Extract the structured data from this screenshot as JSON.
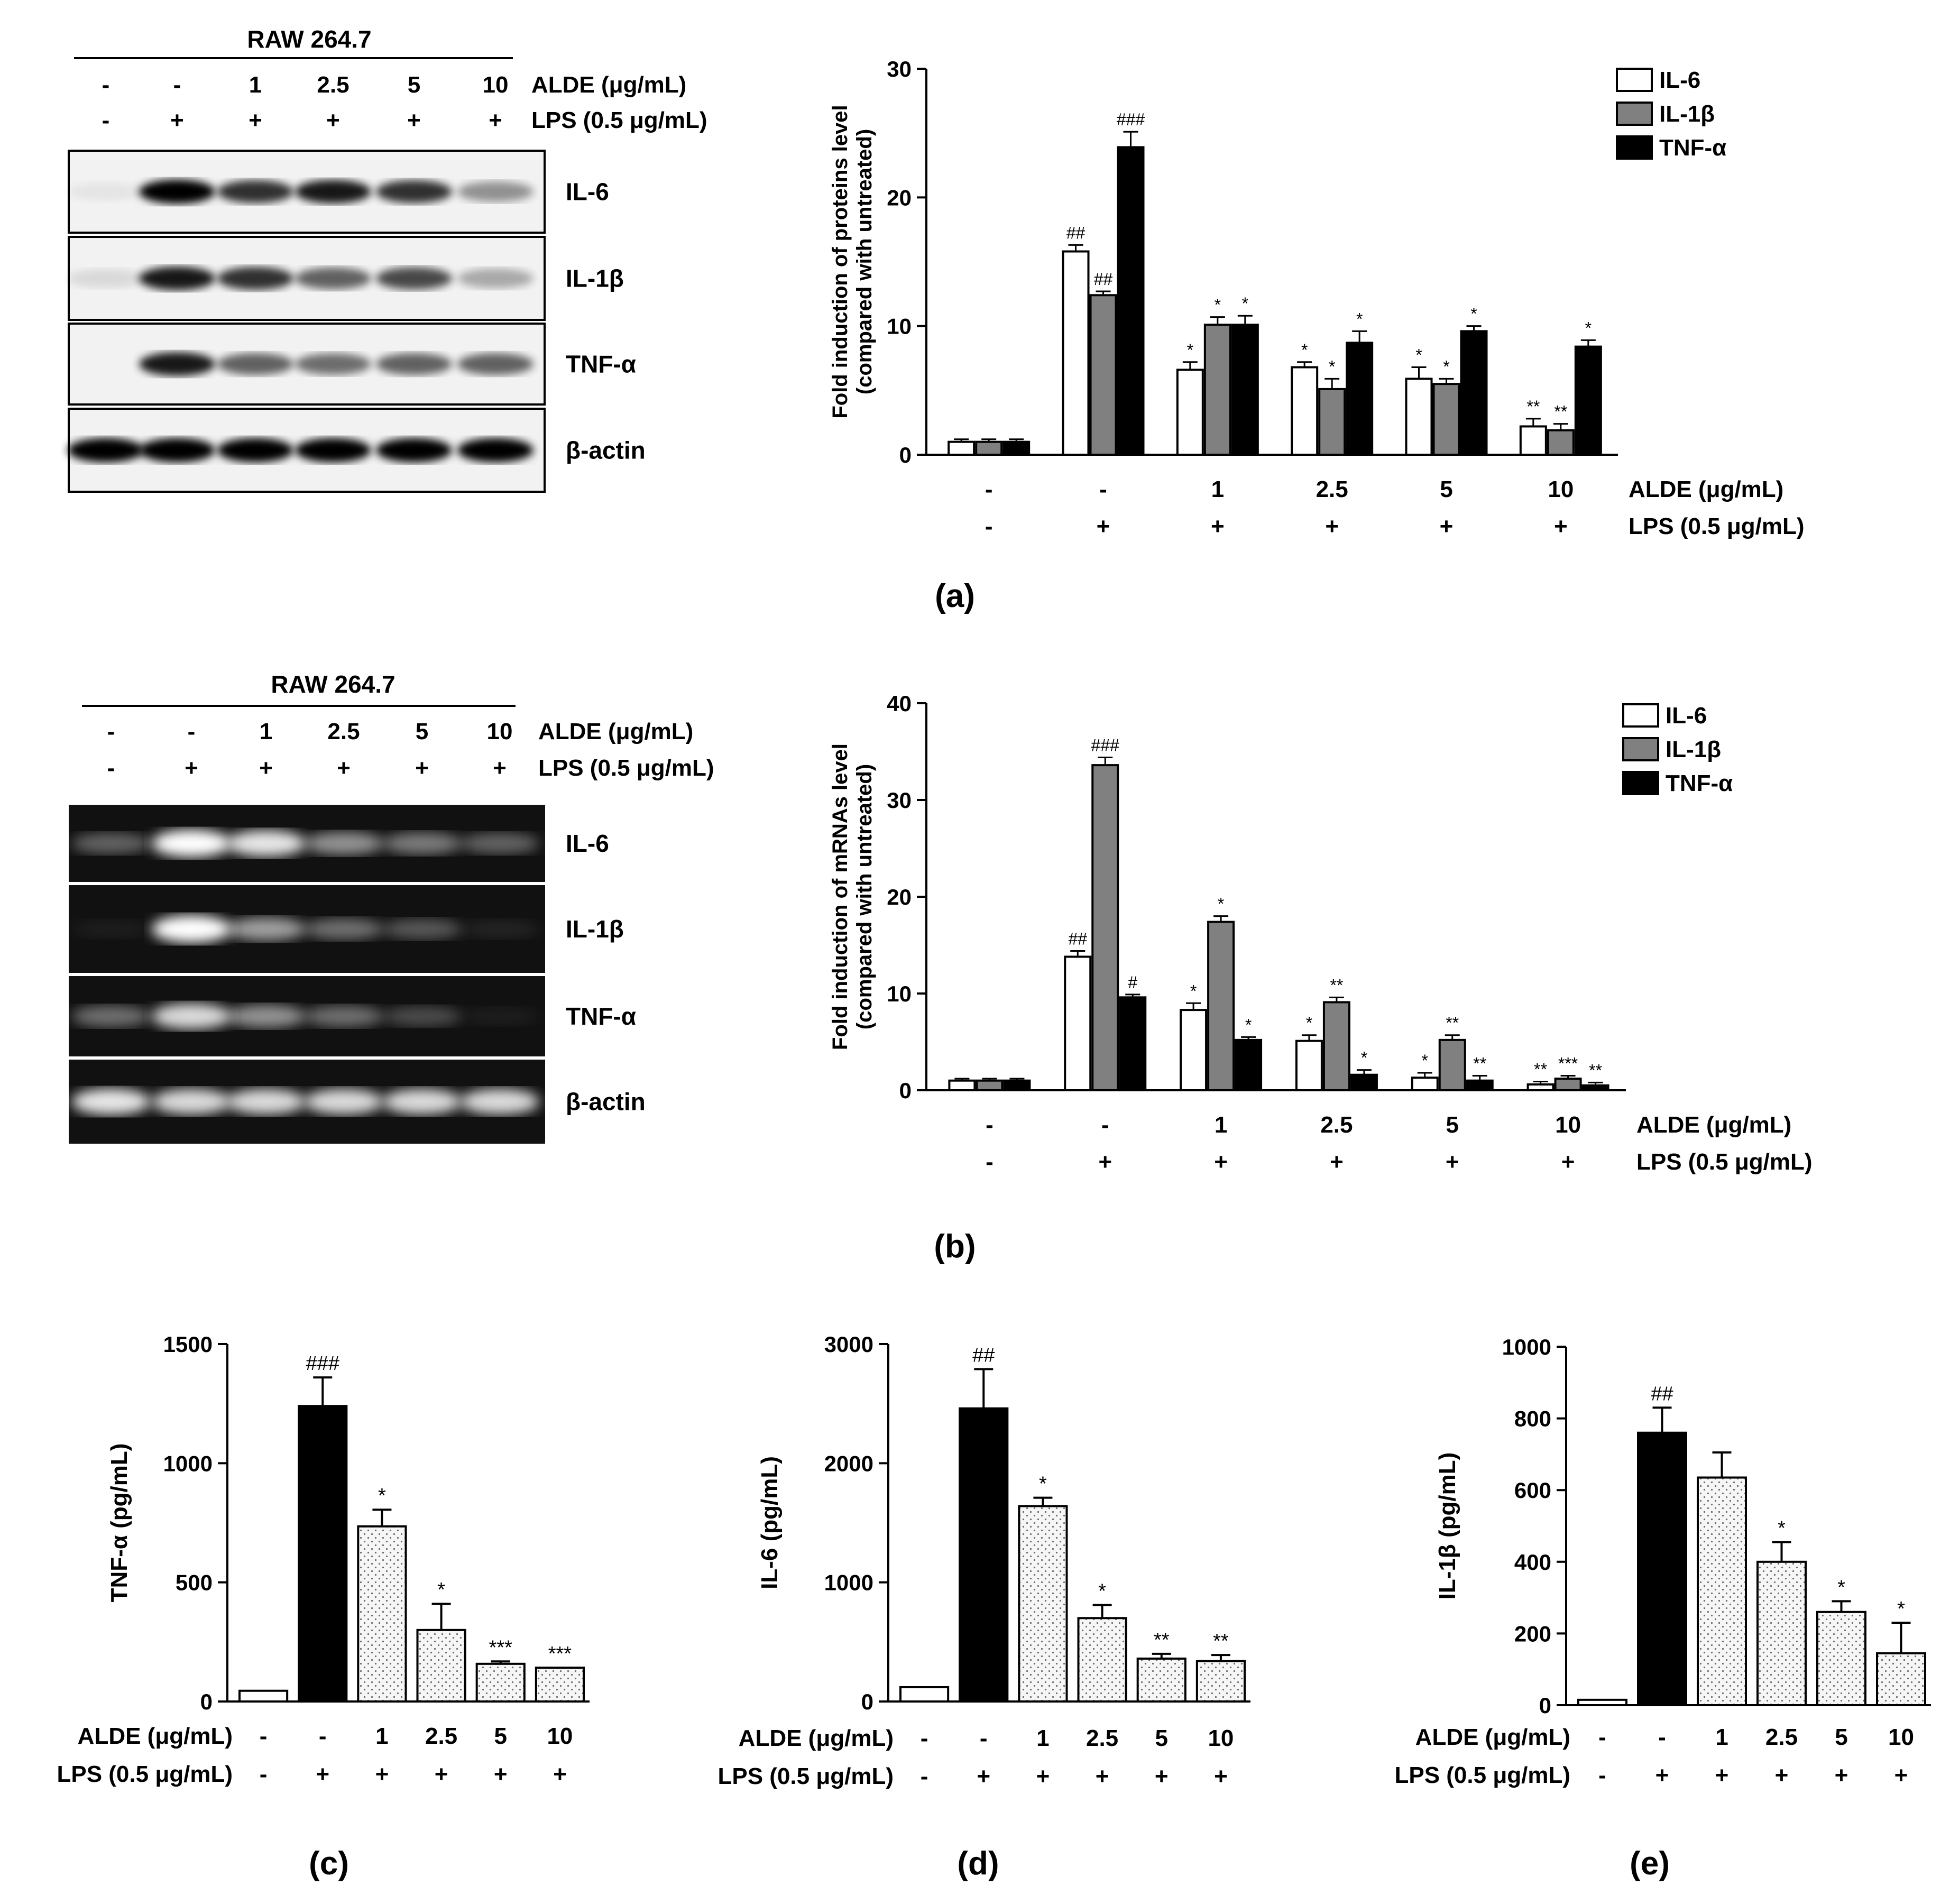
{
  "panel_labels": [
    "(a)",
    "(b)",
    "(c)",
    "(d)",
    "(e)"
  ],
  "treatment_labels": {
    "cell_line": "RAW 264.7",
    "aldes": [
      "-",
      "-",
      "1",
      "2.5",
      "5",
      "10"
    ],
    "lps": [
      "-",
      "+",
      "+",
      "+",
      "+",
      "+"
    ],
    "alde_label": "ALDE (μg/mL)",
    "lps_label": "LPS (0.5 μg/mL)"
  },
  "blot_a": {
    "band_labels": [
      "IL-6",
      "IL-1β",
      "TNF-α",
      "β-actin"
    ],
    "band_intensity": [
      [
        0.05,
        1.0,
        0.8,
        0.9,
        0.8,
        0.4
      ],
      [
        0.1,
        0.9,
        0.8,
        0.6,
        0.7,
        0.3
      ],
      [
        0.0,
        0.9,
        0.6,
        0.55,
        0.6,
        0.6
      ],
      [
        1.0,
        1.0,
        1.0,
        1.0,
        1.0,
        1.0
      ]
    ]
  },
  "gel_b": {
    "band_labels": [
      "IL-6",
      "IL-1β",
      "TNF-α",
      "β-actin"
    ],
    "band_intensity": [
      [
        0.35,
        1.0,
        0.9,
        0.55,
        0.45,
        0.35
      ],
      [
        0.05,
        1.0,
        0.6,
        0.4,
        0.3,
        0.08
      ],
      [
        0.4,
        0.85,
        0.55,
        0.4,
        0.25,
        0.05
      ],
      [
        0.9,
        0.85,
        0.85,
        0.85,
        0.85,
        0.85
      ]
    ]
  },
  "colors": {
    "il6": "#ffffff",
    "il1b": "#808080",
    "tnfa": "#000000",
    "dotted": "#f4f4f4"
  },
  "chart_data": [
    {
      "id": "a",
      "type": "bar",
      "ylabel": "Fold induction of proteins level",
      "ylabel2": "(compared with untreated)",
      "ylim": [
        0,
        30
      ],
      "yticks": [
        0,
        10,
        20,
        30
      ],
      "legend_position": "top-right",
      "categories": [
        "-",
        "-",
        "1",
        "2.5",
        "5",
        "10"
      ],
      "categories2": [
        "-",
        "+",
        "+",
        "+",
        "+",
        "+"
      ],
      "row_labels": [
        "ALDE (μg/mL)",
        "LPS (0.5 μg/mL)"
      ],
      "series": [
        {
          "name": "IL-6",
          "color": "#ffffff",
          "values": [
            1.0,
            15.8,
            6.6,
            6.8,
            5.9,
            2.2
          ],
          "errors": [
            0.2,
            0.5,
            0.6,
            0.4,
            0.9,
            0.6
          ],
          "annotations": [
            "",
            "##",
            "*",
            "*",
            "*",
            "**"
          ]
        },
        {
          "name": "IL-1β",
          "color": "#808080",
          "values": [
            1.0,
            12.4,
            10.1,
            5.1,
            5.5,
            1.9
          ],
          "errors": [
            0.2,
            0.3,
            0.6,
            0.8,
            0.4,
            0.5
          ],
          "annotations": [
            "",
            "##",
            "*",
            "*",
            "*",
            "**"
          ]
        },
        {
          "name": "TNF-α",
          "color": "#000000",
          "values": [
            1.0,
            23.9,
            10.1,
            8.7,
            9.6,
            8.4
          ],
          "errors": [
            0.2,
            1.2,
            0.7,
            0.9,
            0.4,
            0.5
          ],
          "annotations": [
            "",
            "###",
            "*",
            "*",
            "*",
            "*"
          ]
        }
      ]
    },
    {
      "id": "b",
      "type": "bar",
      "ylabel": "Fold induction of mRNAs level",
      "ylabel2": "(compared with untreated)",
      "ylim": [
        0,
        40
      ],
      "yticks": [
        0,
        10,
        20,
        30,
        40
      ],
      "legend_position": "top-right",
      "categories": [
        "-",
        "-",
        "1",
        "2.5",
        "5",
        "10"
      ],
      "categories2": [
        "-",
        "+",
        "+",
        "+",
        "+",
        "+"
      ],
      "row_labels": [
        "ALDE (μg/mL)",
        "LPS (0.5 μg/mL)"
      ],
      "series": [
        {
          "name": "IL-6",
          "color": "#ffffff",
          "values": [
            1.0,
            13.8,
            8.3,
            5.1,
            1.3,
            0.6
          ],
          "errors": [
            0.2,
            0.6,
            0.7,
            0.6,
            0.5,
            0.3
          ],
          "annotations": [
            "",
            "##",
            "*",
            "*",
            "*",
            "**"
          ]
        },
        {
          "name": "IL-1β",
          "color": "#808080",
          "values": [
            1.0,
            33.6,
            17.4,
            9.1,
            5.2,
            1.2
          ],
          "errors": [
            0.2,
            0.8,
            0.6,
            0.5,
            0.5,
            0.3
          ],
          "annotations": [
            "",
            "###",
            "*",
            "**",
            "**",
            "***"
          ]
        },
        {
          "name": "TNF-α",
          "color": "#000000",
          "values": [
            1.0,
            9.6,
            5.2,
            1.6,
            1.0,
            0.5
          ],
          "errors": [
            0.2,
            0.3,
            0.3,
            0.5,
            0.5,
            0.3
          ],
          "annotations": [
            "",
            "#",
            "*",
            "*",
            "**",
            "**"
          ]
        }
      ]
    },
    {
      "id": "c",
      "type": "bar",
      "ylabel": "TNF-α (pg/mL)",
      "ylim": [
        0,
        1500
      ],
      "yticks": [
        0,
        500,
        1000,
        1500
      ],
      "categories": [
        "-",
        "-",
        "1",
        "2.5",
        "5",
        "10"
      ],
      "categories2": [
        "-",
        "+",
        "+",
        "+",
        "+",
        "+"
      ],
      "row_labels": [
        "ALDE (μg/mL)",
        "LPS (0.5 μg/mL)"
      ],
      "values": [
        45,
        1240,
        735,
        300,
        158,
        142
      ],
      "errors": [
        0,
        120,
        70,
        110,
        10,
        0
      ],
      "fills": [
        "white",
        "black",
        "dotted",
        "dotted",
        "dotted",
        "dotted"
      ],
      "annotations": [
        "",
        "###",
        "*",
        "*",
        "***",
        "***"
      ]
    },
    {
      "id": "d",
      "type": "bar",
      "ylabel": "IL-6 (pg/mL)",
      "ylim": [
        0,
        3000
      ],
      "yticks": [
        0,
        1000,
        2000,
        3000
      ],
      "categories": [
        "-",
        "-",
        "1",
        "2.5",
        "5",
        "10"
      ],
      "categories2": [
        "-",
        "+",
        "+",
        "+",
        "+",
        "+"
      ],
      "row_labels": [
        "ALDE (μg/mL)",
        "LPS (0.5 μg/mL)"
      ],
      "values": [
        120,
        2460,
        1640,
        700,
        360,
        340
      ],
      "errors": [
        0,
        330,
        70,
        110,
        40,
        50
      ],
      "fills": [
        "white",
        "black",
        "dotted",
        "dotted",
        "dotted",
        "dotted"
      ],
      "annotations": [
        "",
        "##",
        "*",
        "*",
        "**",
        "**"
      ]
    },
    {
      "id": "e",
      "type": "bar",
      "ylabel": "IL-1β (pg/mL)",
      "ylim": [
        0,
        1000
      ],
      "yticks": [
        0,
        200,
        400,
        600,
        800,
        1000
      ],
      "categories": [
        "-",
        "-",
        "1",
        "2.5",
        "5",
        "10"
      ],
      "categories2": [
        "-",
        "+",
        "+",
        "+",
        "+",
        "+"
      ],
      "row_labels": [
        "ALDE (μg/mL)",
        "LPS (0.5 μg/mL)"
      ],
      "values": [
        15,
        760,
        635,
        400,
        260,
        145
      ],
      "errors": [
        0,
        70,
        70,
        55,
        30,
        85
      ],
      "fills": [
        "white",
        "black",
        "dotted",
        "dotted",
        "dotted",
        "dotted"
      ],
      "annotations": [
        "",
        "##",
        "",
        "*",
        "*",
        "*"
      ]
    }
  ]
}
